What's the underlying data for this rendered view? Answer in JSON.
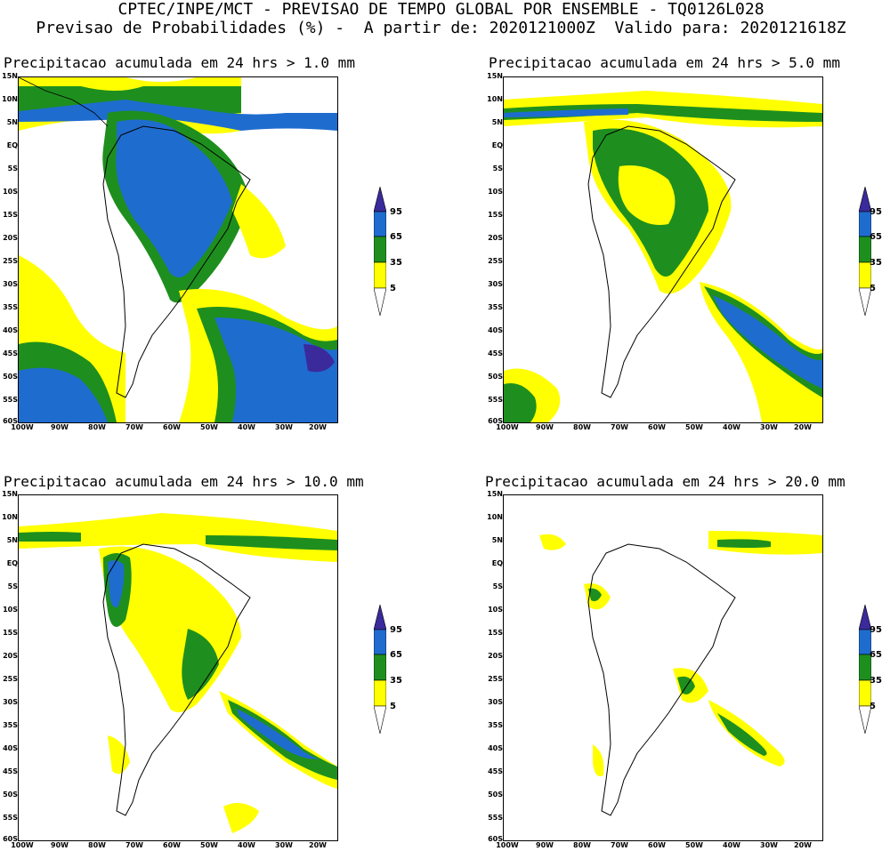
{
  "header": {
    "line1": "CPTEC/INPE/MCT - PREVISAO DE TEMPO GLOBAL POR ENSEMBLE - TQ0126L028",
    "line2": "Previsao de Probabilidades (%) -  A partir de: 2020121000Z  Valido para: 2020121618Z"
  },
  "panels": [
    {
      "title": "Precipitacao acumulada em 24 hrs > 1.0 mm"
    },
    {
      "title": "Precipitacao acumulada em 24 hrs > 5.0 mm"
    },
    {
      "title": "Precipitacao acumulada em 24 hrs > 10.0 mm"
    },
    {
      "title": "Precipitacao acumulada em 24 hrs > 20.0 mm"
    }
  ],
  "axes": {
    "lat_labels": [
      "15N",
      "10N",
      "5N",
      "EQ",
      "5S",
      "10S",
      "15S",
      "20S",
      "25S",
      "30S",
      "35S",
      "40S",
      "45S",
      "50S",
      "55S",
      "60S"
    ],
    "lon_labels": [
      "100W",
      "90W",
      "80W",
      "70W",
      "60W",
      "50W",
      "40W",
      "30W",
      "20W"
    ]
  },
  "colorbar": {
    "levels": [
      "95",
      "65",
      "35",
      "5"
    ],
    "colors": {
      "c95": "#3a2a9c",
      "c65": "#1f6ccf",
      "c35": "#1e8f1e",
      "c5": "#ffff00"
    }
  }
}
